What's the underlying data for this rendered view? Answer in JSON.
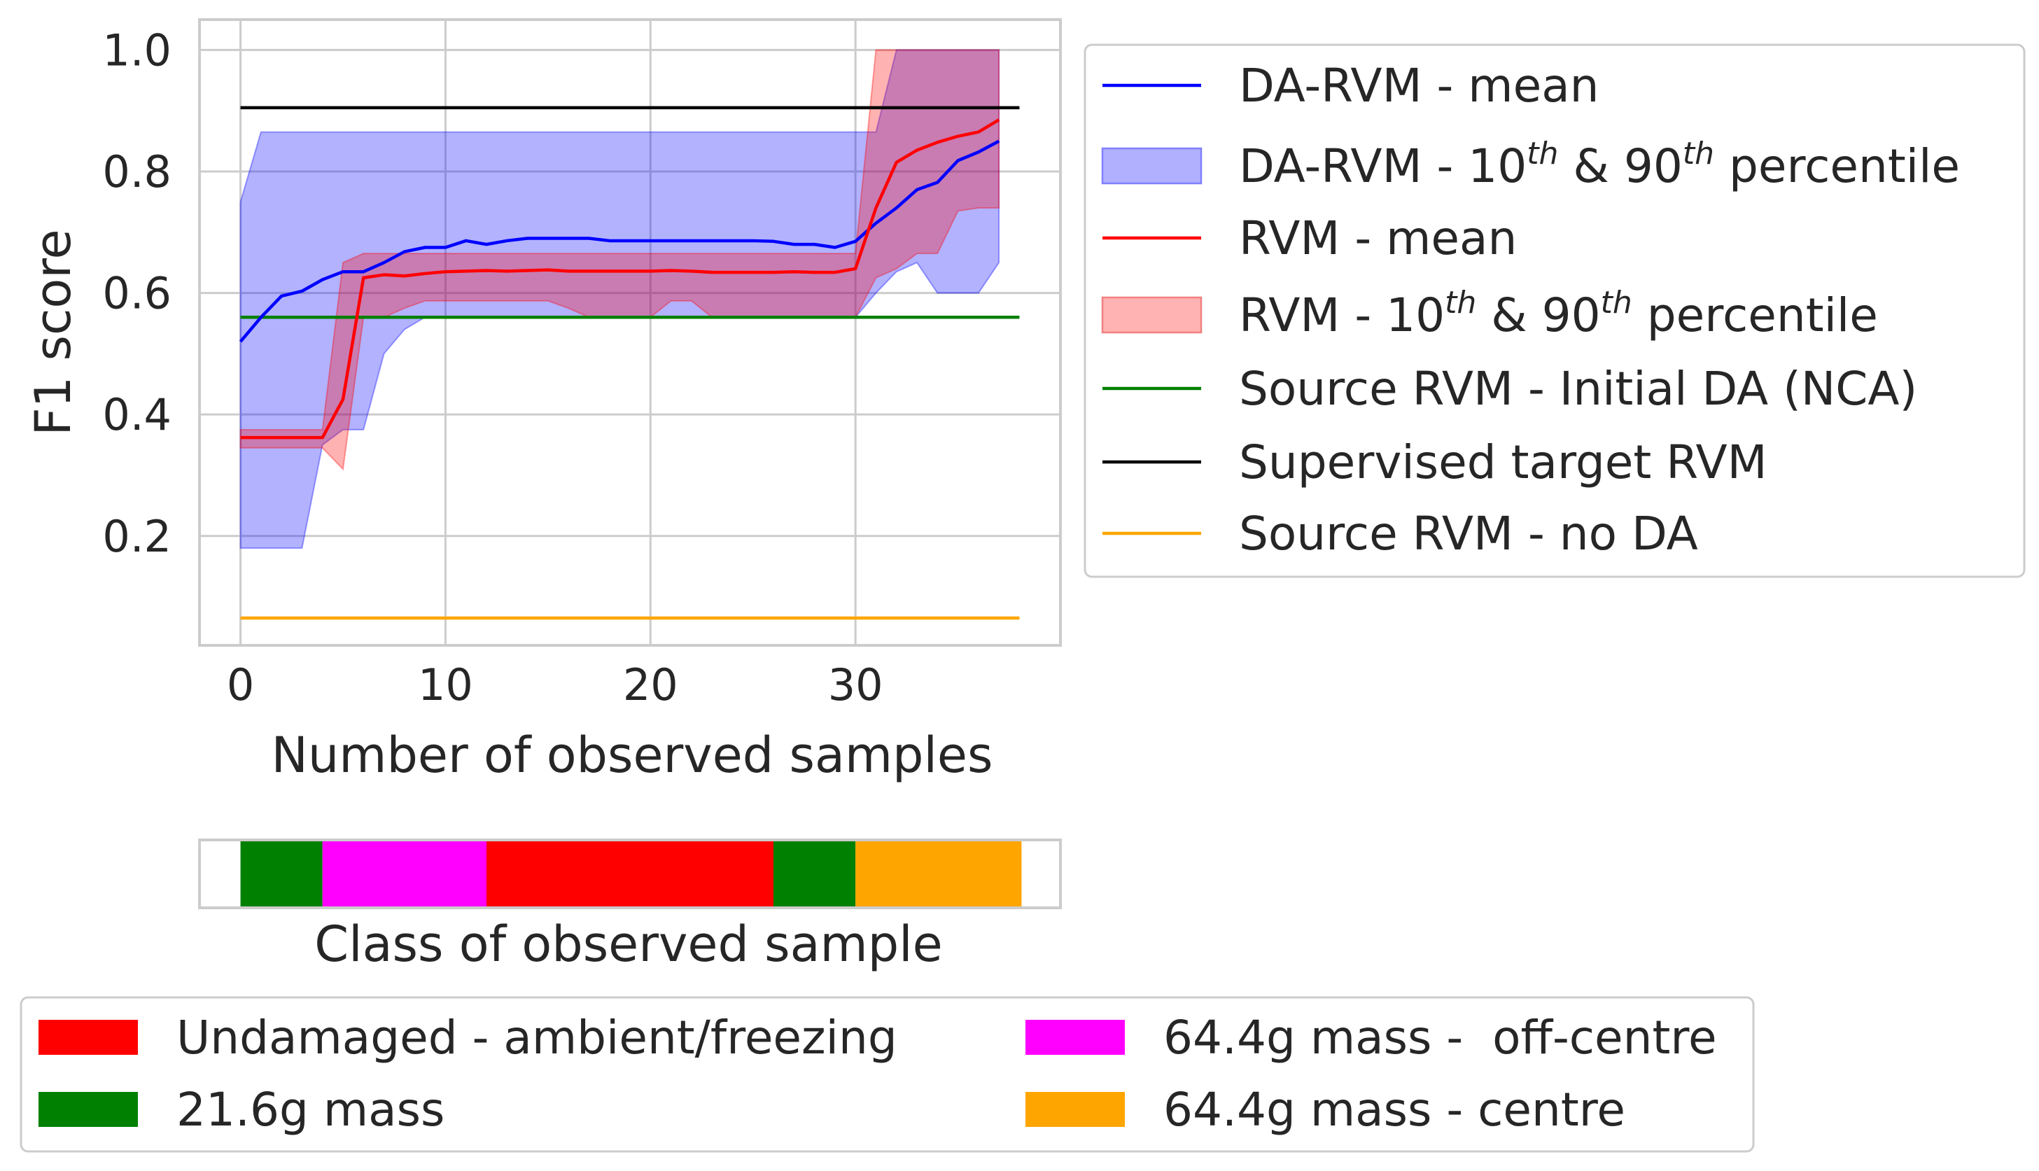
{
  "chart_data": [
    {
      "type": "line",
      "title": "",
      "xlabel": "Number of observed samples",
      "ylabel": "F1 score",
      "xlim": [
        -2,
        40
      ],
      "ylim": [
        0.02,
        1.05
      ],
      "xticks": [
        0,
        10,
        20,
        30
      ],
      "yticks": [
        0.2,
        0.4,
        0.6,
        0.8,
        1.0
      ],
      "ytick_labels": [
        "0.2",
        "0.4",
        "0.6",
        "0.8",
        "1.0"
      ],
      "grid": true,
      "legend_placement": "outside right",
      "legend": [
        {
          "kind": "line",
          "color": "#0000ff",
          "label_pre": "DA-RVM - mean"
        },
        {
          "kind": "band",
          "fill": "#b0b0ff",
          "edge": "#8080ff",
          "label_pre": "DA-RVM - 10",
          "sup1": "th",
          "label_mid": " & 90",
          "sup2": "th",
          "label_post": " percentile"
        },
        {
          "kind": "line",
          "color": "#ff0000",
          "label_pre": "RVM - mean"
        },
        {
          "kind": "band",
          "fill": "#ffb3b3",
          "edge": "#f08080",
          "label_pre": "RVM - 10",
          "sup1": "th",
          "label_mid": " & 90",
          "sup2": "th",
          "label_post": " percentile"
        },
        {
          "kind": "line",
          "color": "#008000",
          "label_pre": "Source RVM - Initial DA (NCA)"
        },
        {
          "kind": "line",
          "color": "#000000",
          "label_pre": "Supervised target RVM"
        },
        {
          "kind": "line",
          "color": "#ffa500",
          "label_pre": "Source RVM - no DA"
        }
      ],
      "series": [
        {
          "name": "DA-RVM - mean",
          "color": "#0000ff",
          "x": [
            0,
            1,
            2,
            3,
            4,
            5,
            6,
            7,
            8,
            9,
            10,
            11,
            12,
            13,
            14,
            15,
            16,
            17,
            18,
            19,
            20,
            21,
            22,
            23,
            24,
            25,
            26,
            27,
            28,
            29,
            30,
            31,
            32,
            33,
            34,
            35,
            36,
            37
          ],
          "values": [
            0.52,
            0.56,
            0.595,
            0.603,
            0.622,
            0.635,
            0.635,
            0.65,
            0.668,
            0.675,
            0.675,
            0.686,
            0.68,
            0.686,
            0.69,
            0.69,
            0.69,
            0.69,
            0.686,
            0.686,
            0.686,
            0.686,
            0.686,
            0.686,
            0.686,
            0.686,
            0.685,
            0.68,
            0.68,
            0.675,
            0.685,
            0.715,
            0.74,
            0.77,
            0.782,
            0.818,
            0.832,
            0.85
          ]
        },
        {
          "name": "RVM - mean",
          "color": "#ff0000",
          "x": [
            0,
            1,
            2,
            3,
            4,
            5,
            6,
            7,
            8,
            9,
            10,
            11,
            12,
            13,
            14,
            15,
            16,
            17,
            18,
            19,
            20,
            21,
            22,
            23,
            24,
            25,
            26,
            27,
            28,
            29,
            30,
            31,
            32,
            33,
            34,
            35,
            36,
            37
          ],
          "values": [
            0.362,
            0.362,
            0.362,
            0.362,
            0.362,
            0.425,
            0.625,
            0.63,
            0.628,
            0.632,
            0.635,
            0.636,
            0.637,
            0.636,
            0.637,
            0.638,
            0.636,
            0.636,
            0.636,
            0.636,
            0.636,
            0.637,
            0.636,
            0.634,
            0.634,
            0.634,
            0.634,
            0.635,
            0.634,
            0.634,
            0.64,
            0.74,
            0.815,
            0.835,
            0.848,
            0.858,
            0.865,
            0.885
          ]
        },
        {
          "name": "DA-RVM - 10th & 90th percentile",
          "kind": "band",
          "color": "#b0b0ff",
          "x": [
            0,
            1,
            2,
            3,
            4,
            5,
            6,
            7,
            8,
            9,
            10,
            11,
            12,
            13,
            14,
            15,
            16,
            17,
            18,
            19,
            20,
            21,
            22,
            23,
            24,
            25,
            26,
            27,
            28,
            29,
            30,
            31,
            32,
            33,
            34,
            35,
            36,
            37
          ],
          "lower": [
            0.18,
            0.18,
            0.18,
            0.18,
            0.35,
            0.375,
            0.375,
            0.5,
            0.54,
            0.56,
            0.56,
            0.56,
            0.56,
            0.56,
            0.56,
            0.56,
            0.56,
            0.56,
            0.56,
            0.56,
            0.56,
            0.56,
            0.56,
            0.56,
            0.56,
            0.56,
            0.56,
            0.56,
            0.56,
            0.56,
            0.56,
            0.6,
            0.635,
            0.65,
            0.6,
            0.6,
            0.6,
            0.65
          ],
          "upper": [
            0.75,
            0.865,
            0.865,
            0.865,
            0.865,
            0.865,
            0.865,
            0.865,
            0.865,
            0.865,
            0.865,
            0.865,
            0.865,
            0.865,
            0.865,
            0.865,
            0.865,
            0.865,
            0.865,
            0.865,
            0.865,
            0.865,
            0.865,
            0.865,
            0.865,
            0.865,
            0.865,
            0.865,
            0.865,
            0.865,
            0.865,
            0.865,
            1.0,
            1.0,
            1.0,
            1.0,
            1.0,
            1.0
          ]
        },
        {
          "name": "RVM - 10th & 90th percentile",
          "kind": "band",
          "color": "#ffb3b3",
          "x": [
            0,
            1,
            2,
            3,
            4,
            5,
            6,
            7,
            8,
            9,
            10,
            11,
            12,
            13,
            14,
            15,
            16,
            17,
            18,
            19,
            20,
            21,
            22,
            23,
            24,
            25,
            26,
            27,
            28,
            29,
            30,
            31,
            32,
            33,
            34,
            35,
            36,
            37
          ],
          "lower": [
            0.345,
            0.345,
            0.345,
            0.345,
            0.345,
            0.31,
            0.56,
            0.56,
            0.575,
            0.587,
            0.587,
            0.587,
            0.587,
            0.587,
            0.587,
            0.587,
            0.575,
            0.56,
            0.56,
            0.56,
            0.56,
            0.587,
            0.587,
            0.56,
            0.56,
            0.56,
            0.56,
            0.56,
            0.56,
            0.56,
            0.56,
            0.625,
            0.64,
            0.665,
            0.665,
            0.735,
            0.74,
            0.74
          ],
          "upper": [
            0.375,
            0.375,
            0.375,
            0.375,
            0.375,
            0.65,
            0.665,
            0.665,
            0.665,
            0.665,
            0.665,
            0.665,
            0.665,
            0.665,
            0.665,
            0.665,
            0.665,
            0.665,
            0.665,
            0.665,
            0.665,
            0.665,
            0.665,
            0.665,
            0.665,
            0.665,
            0.665,
            0.665,
            0.665,
            0.665,
            0.665,
            1.0,
            1.0,
            1.0,
            1.0,
            1.0,
            1.0,
            1.0
          ]
        },
        {
          "name": "Source RVM - Initial DA (NCA)",
          "kind": "hline",
          "color": "#008000",
          "x": [
            0,
            38
          ],
          "values": [
            0.56,
            0.56
          ]
        },
        {
          "name": "Supervised target RVM",
          "kind": "hline",
          "color": "#000000",
          "x": [
            0,
            38
          ],
          "values": [
            0.905,
            0.905
          ]
        },
        {
          "name": "Source RVM - no DA",
          "kind": "hline",
          "color": "#ffa500",
          "x": [
            0,
            38
          ],
          "values": [
            0.065,
            0.065
          ]
        }
      ]
    },
    {
      "type": "bar",
      "title": "",
      "xlabel": "Class of observed sample",
      "ylabel": "",
      "xlim": [
        -2,
        40
      ],
      "orientation": "horizontal strip",
      "segments": [
        {
          "class": "21.6g mass",
          "color": "#008000",
          "start": 0,
          "end": 4
        },
        {
          "class": "64.4g mass -  off-centre",
          "color": "#ff00ff",
          "start": 4,
          "end": 12
        },
        {
          "class": "Undamaged - ambient/freezing",
          "color": "#ff0000",
          "start": 12,
          "end": 26
        },
        {
          "class": "21.6g mass",
          "color": "#008000",
          "start": 26,
          "end": 30
        },
        {
          "class": "64.4g mass - centre",
          "color": "#ffa500",
          "start": 30,
          "end": 38.1
        }
      ],
      "legend": [
        {
          "label": "Undamaged - ambient/freezing",
          "color": "#ff0000"
        },
        {
          "label": "21.6g mass",
          "color": "#008000"
        },
        {
          "label": "64.4g mass -  off-centre",
          "color": "#ff00ff"
        },
        {
          "label": "64.4g mass - centre",
          "color": "#ffa500"
        }
      ],
      "legend_placement": "bottom"
    }
  ]
}
